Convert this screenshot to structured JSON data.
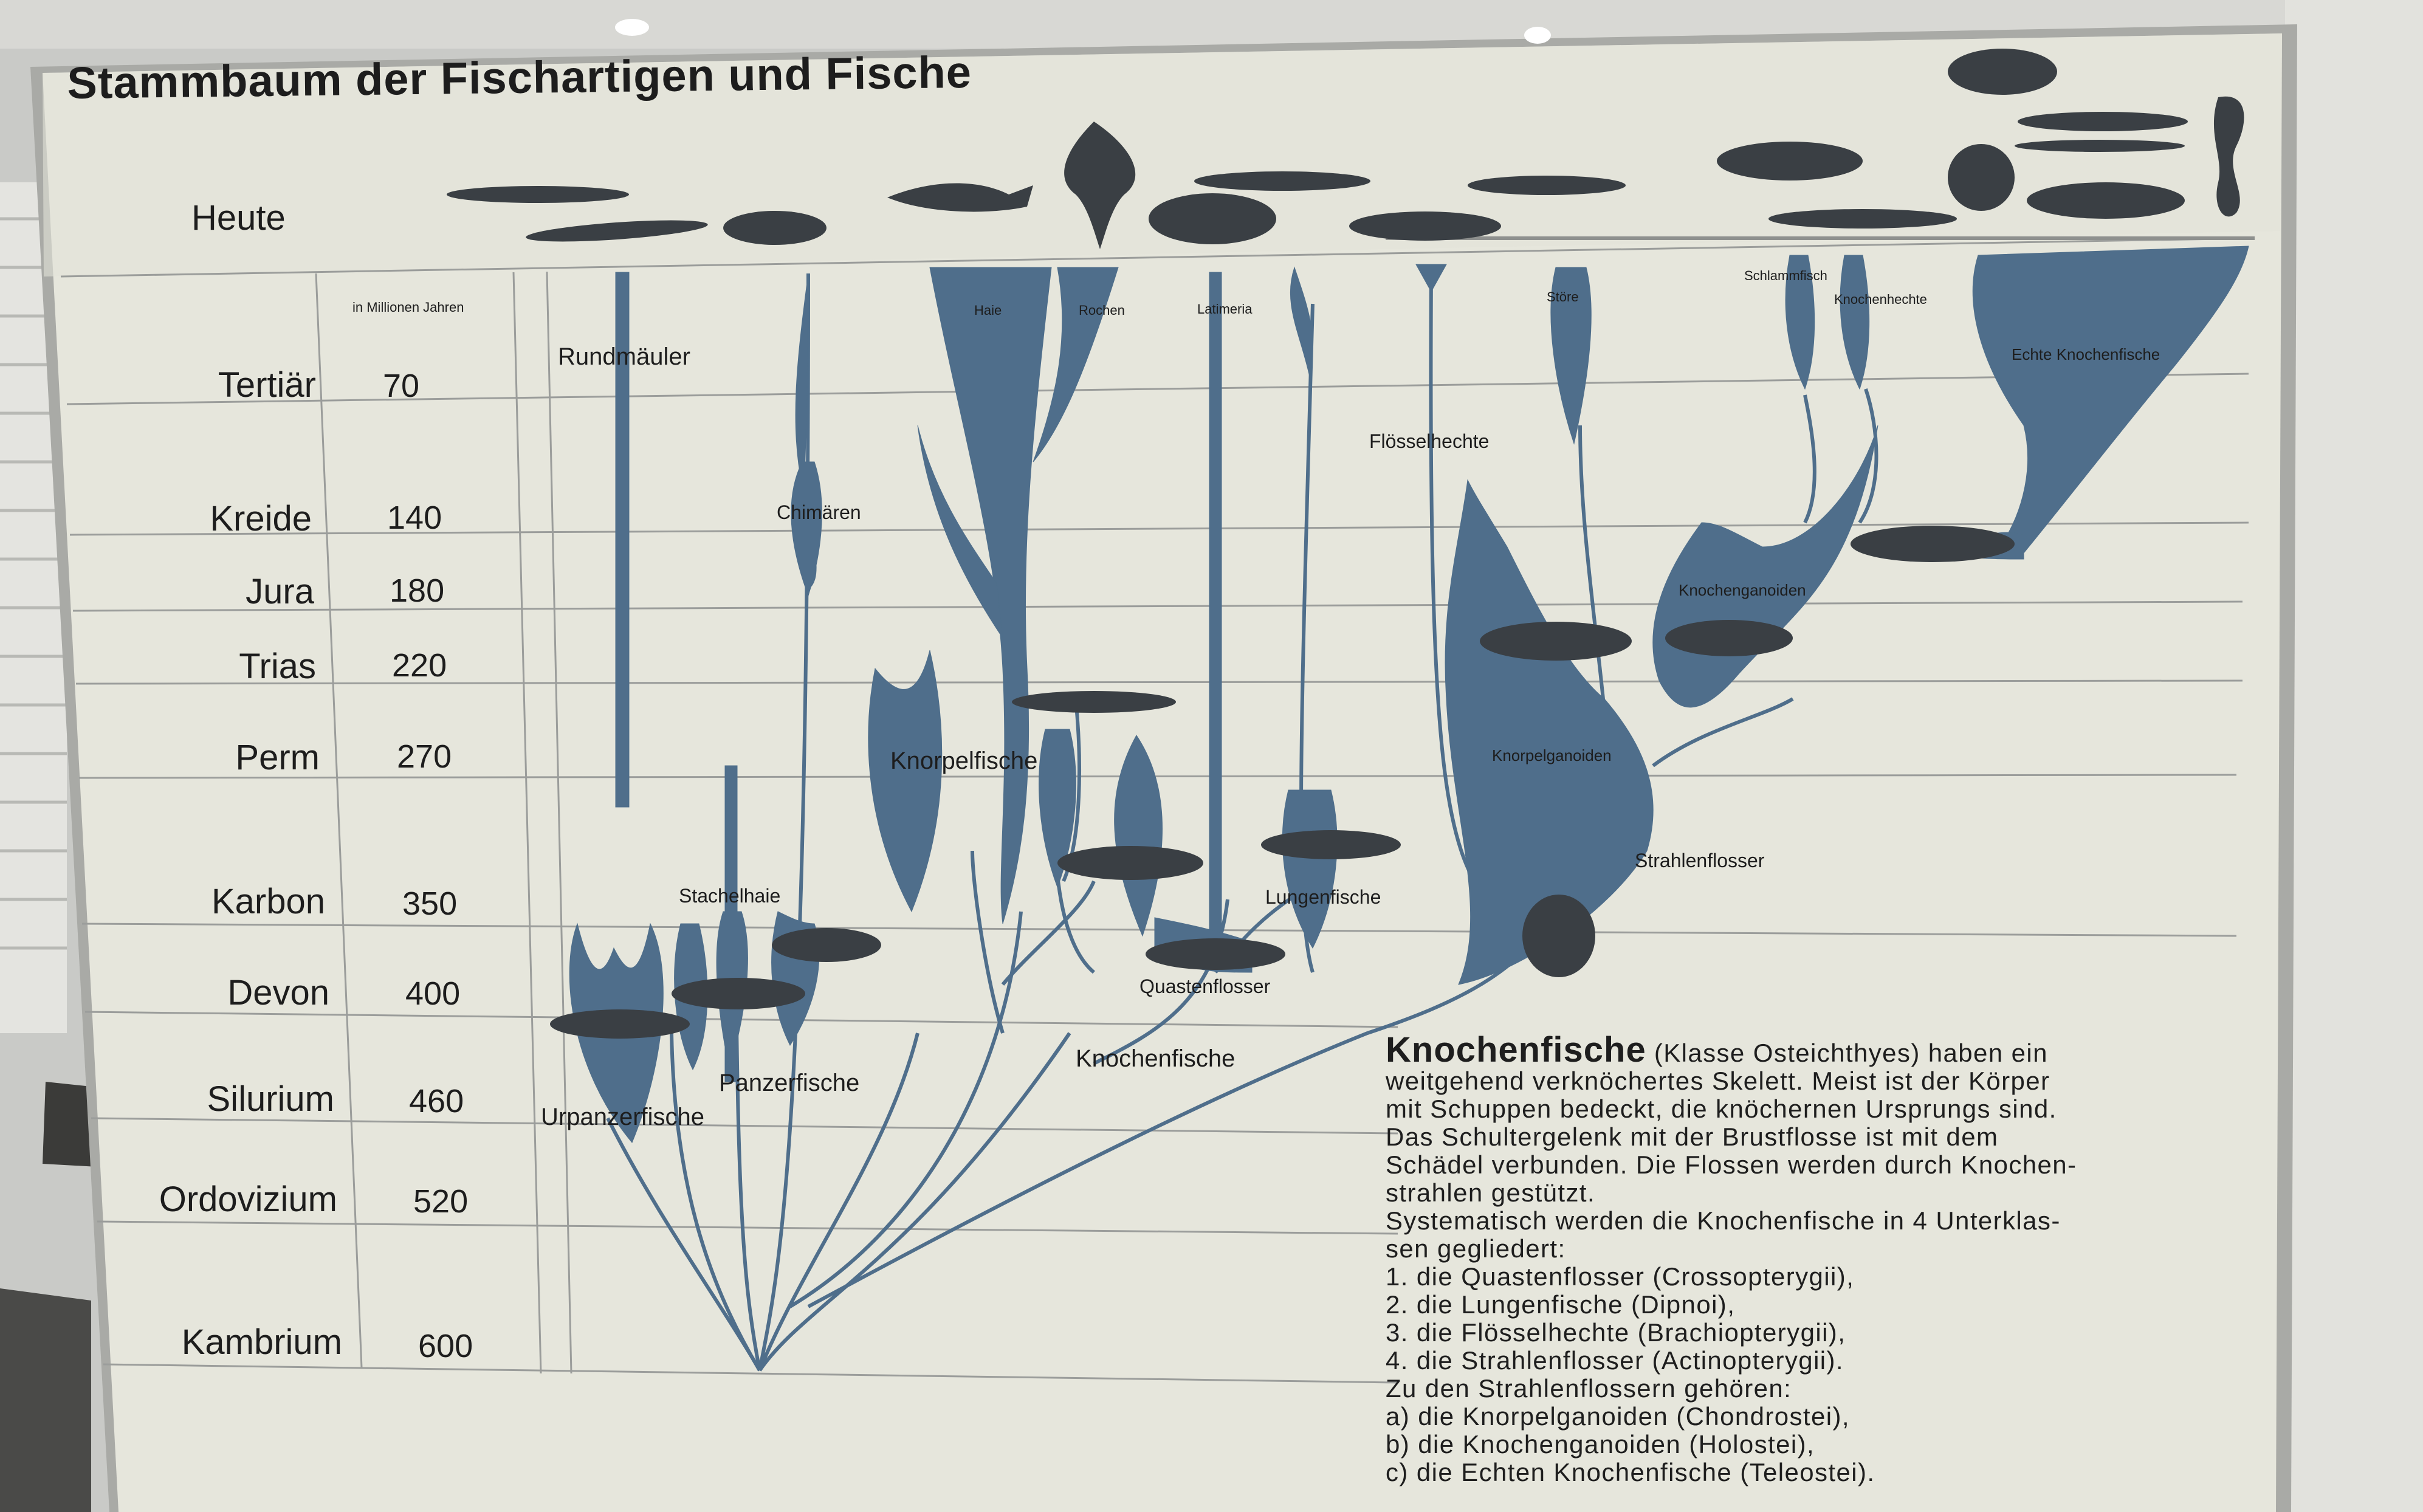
{
  "board": {
    "title": "Stammbaum der Fischartigen und Fische",
    "present_label": "Heute",
    "unit_label": "in Millionen Jahren"
  },
  "periods": [
    {
      "name": "Tertiär",
      "mya": "70"
    },
    {
      "name": "Kreide",
      "mya": "140"
    },
    {
      "name": "Jura",
      "mya": "180"
    },
    {
      "name": "Trias",
      "mya": "220"
    },
    {
      "name": "Perm",
      "mya": "270"
    },
    {
      "name": "Karbon",
      "mya": "350"
    },
    {
      "name": "Devon",
      "mya": "400"
    },
    {
      "name": "Silurium",
      "mya": "460"
    },
    {
      "name": "Ordovizium",
      "mya": "520"
    },
    {
      "name": "Kambrium",
      "mya": "600"
    }
  ],
  "groups": {
    "rundmaeuler": "Rundmäuler",
    "chimaeren": "Chimären",
    "haie": "Haie",
    "rochen": "Rochen",
    "latimeria": "Latimeria",
    "floesselhechte": "Flösselhechte",
    "stoere": "Störe",
    "schlammfisch": "Schlammfisch",
    "knochenhechte": "Knochenhechte",
    "echte_knochenfische": "Echte Knochenfische",
    "knochenganoiden": "Knochenganoiden",
    "knorpelganoiden": "Knorpelganoiden",
    "strahlenflosser": "Strahlenflosser",
    "knorpelfische": "Knorpelfische",
    "lungenfische": "Lungenfische",
    "quastenflosser": "Quastenflosser",
    "stachelhaie": "Stachelhaie",
    "panzerfische": "Panzerfische",
    "urpanzerfische": "Urpanzerfische",
    "knochenfische": "Knochenfische"
  },
  "description": {
    "heading": "Knochenfische",
    "lines": [
      "(Klasse Osteichthyes) haben ein",
      "weitgehend verknöchertes Skelett. Meist ist der Körper",
      "mit Schuppen bedeckt, die knöchernen Ursprungs sind.",
      "Das Schultergelenk mit der Brustflosse ist mit dem",
      "Schädel verbunden. Die Flossen werden durch Knochen-",
      "strahlen gestützt.",
      "Systematisch werden die Knochenfische in 4 Unterklas-",
      "sen gegliedert:",
      "1. die Quastenflosser (Crossopterygii),",
      "2. die Lungenfische (Dipnoi),",
      "3. die Flösselhechte (Brachiopterygii),",
      "4. die Strahlenflosser (Actinopterygii).",
      "Zu den Strahlenflossern gehören:",
      "a) die Knorpelganoiden (Chondrostei),",
      "b) die Knochenganoiden (Holostei),",
      "c) die Echten Knochenfische (Teleostei)."
    ]
  },
  "colors": {
    "board": "#e6e6dc",
    "branch": "#4f6e8b",
    "frame": "#a9aaa6",
    "grid_line": "#9b9d9b",
    "text": "#1d1d1d"
  }
}
